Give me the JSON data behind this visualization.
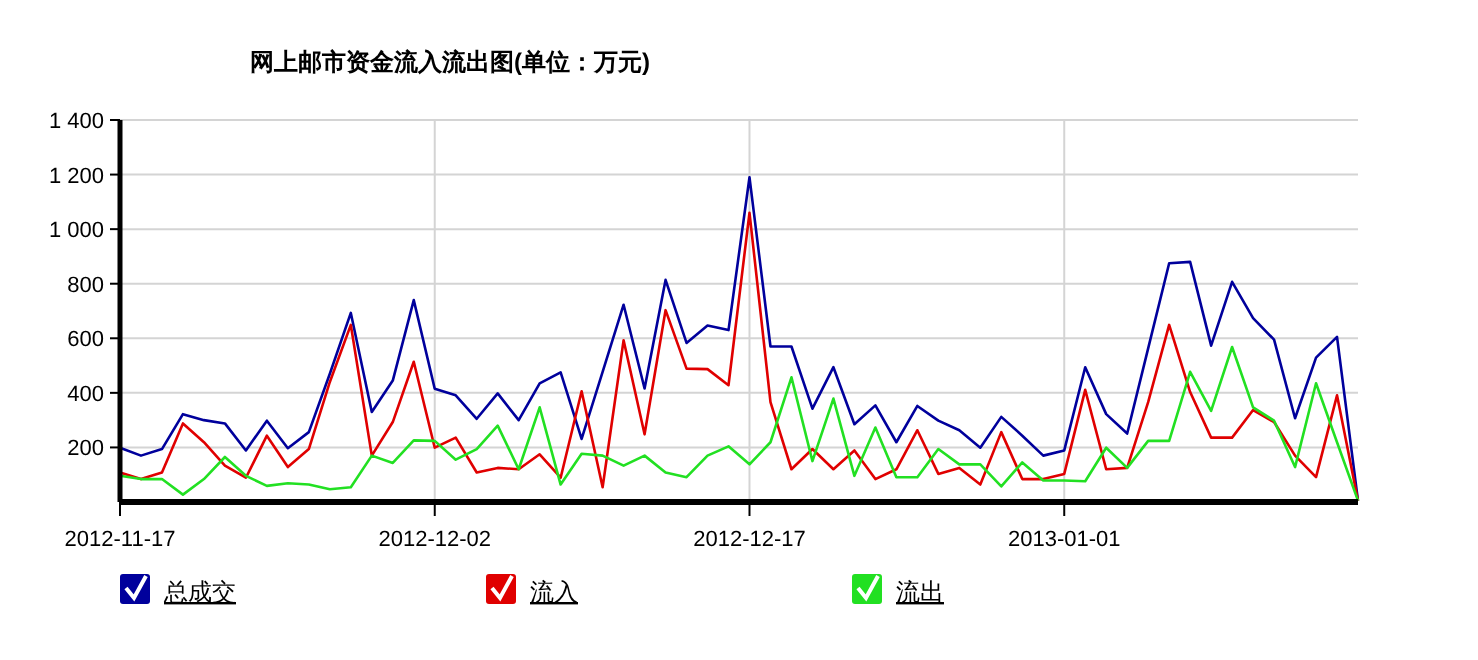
{
  "chart_data": {
    "type": "line",
    "title": "网上邮市资金流入流出图(单位：万元)",
    "x": [
      "2012-11-17",
      "2012-11-18",
      "2012-11-19",
      "2012-11-20",
      "2012-11-21",
      "2012-11-22",
      "2012-11-23",
      "2012-11-24",
      "2012-11-25",
      "2012-11-26",
      "2012-11-27",
      "2012-11-28",
      "2012-11-29",
      "2012-11-30",
      "2012-12-01",
      "2012-12-02",
      "2012-12-03",
      "2012-12-04",
      "2012-12-05",
      "2012-12-06",
      "2012-12-07",
      "2012-12-08",
      "2012-12-09",
      "2012-12-10",
      "2012-12-11",
      "2012-12-12",
      "2012-12-13",
      "2012-12-14",
      "2012-12-15",
      "2012-12-16",
      "2012-12-17",
      "2012-12-18",
      "2012-12-19",
      "2012-12-20",
      "2012-12-21",
      "2012-12-22",
      "2012-12-23",
      "2012-12-24",
      "2012-12-25",
      "2012-12-26",
      "2012-12-27",
      "2012-12-28",
      "2012-12-29",
      "2012-12-30",
      "2012-12-31",
      "2013-01-01",
      "2013-01-02",
      "2013-01-03",
      "2013-01-04",
      "2013-01-05",
      "2013-01-06",
      "2013-01-07",
      "2013-01-08",
      "2013-01-09",
      "2013-01-10",
      "2013-01-11",
      "2013-01-12",
      "2013-01-13",
      "2013-01-14",
      "2013-01-15"
    ],
    "series": [
      {
        "name": "总成交",
        "color": "#00009c",
        "values": [
          199,
          170,
          194,
          322,
          300,
          288,
          189,
          298,
          197,
          256,
          470,
          693,
          330,
          445,
          740,
          415,
          391,
          305,
          398,
          300,
          435,
          475,
          231,
          477,
          723,
          416,
          814,
          583,
          647,
          630,
          1190,
          570,
          570,
          342,
          494,
          285,
          354,
          219,
          352,
          298,
          263,
          199,
          312,
          243,
          170,
          189,
          494,
          322,
          251,
          563,
          875,
          880,
          573,
          807,
          674,
          595,
          307,
          529,
          605,
          5
        ]
      },
      {
        "name": "流入",
        "color": "#e00000",
        "values": [
          108,
          84,
          108,
          288,
          219,
          133,
          89,
          243,
          128,
          194,
          440,
          649,
          170,
          293,
          514,
          199,
          236,
          108,
          125,
          120,
          175,
          89,
          406,
          54,
          593,
          248,
          703,
          489,
          487,
          428,
          1060,
          366,
          120,
          194,
          120,
          189,
          84,
          120,
          263,
          103,
          125,
          64,
          256,
          84,
          84,
          103,
          411,
          120,
          125,
          366,
          649,
          403,
          236,
          236,
          337,
          293,
          170,
          91,
          391,
          5
        ]
      },
      {
        "name": "流出",
        "color": "#22e022",
        "values": [
          96,
          84,
          84,
          27,
          84,
          165,
          96,
          59,
          69,
          64,
          47,
          54,
          170,
          143,
          226,
          224,
          155,
          194,
          280,
          120,
          347,
          64,
          177,
          170,
          133,
          170,
          108,
          91,
          170,
          204,
          138,
          219,
          457,
          150,
          379,
          96,
          273,
          91,
          91,
          194,
          138,
          138,
          57,
          145,
          79,
          79,
          76,
          199,
          125,
          224,
          224,
          477,
          334,
          568,
          347,
          298,
          128,
          435,
          219,
          5
        ]
      }
    ],
    "xlim": [
      "2012-11-17",
      "2013-01-15"
    ],
    "xticks": [
      "2012-11-17",
      "2012-12-02",
      "2012-12-17",
      "2013-01-01"
    ],
    "ylim": [
      0,
      1400
    ],
    "yticks": [
      {
        "value": 200,
        "label": "200"
      },
      {
        "value": 400,
        "label": "400"
      },
      {
        "value": 600,
        "label": "600"
      },
      {
        "value": 800,
        "label": "800"
      },
      {
        "value": 1000,
        "label": "1 000"
      },
      {
        "value": 1200,
        "label": "1 200"
      },
      {
        "value": 1400,
        "label": "1 400"
      }
    ],
    "grid": true,
    "legend": "bottom left"
  }
}
